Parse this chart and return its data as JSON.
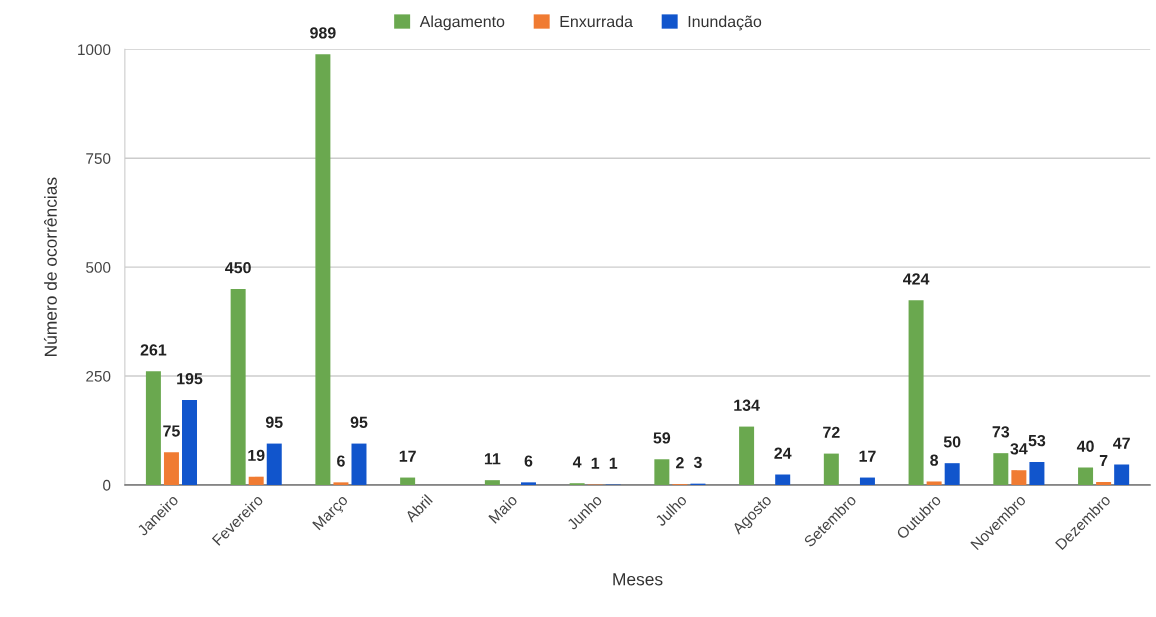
{
  "chart_data": {
    "type": "bar",
    "xlabel": "Meses",
    "ylabel": "Número de ocorrências",
    "categories": [
      "Janeiro",
      "Fevereiro",
      "Março",
      "Abril",
      "Maio",
      "Junho",
      "Julho",
      "Agosto",
      "Setembro",
      "Outubro",
      "Novembro",
      "Dezembro"
    ],
    "series": [
      {
        "name": "Alagamento",
        "color": "#6aa84f",
        "values": [
          261,
          450,
          989,
          17,
          11,
          4,
          59,
          134,
          72,
          424,
          73,
          40
        ]
      },
      {
        "name": "Enxurrada",
        "color": "#f07b32",
        "values": [
          75,
          19,
          6,
          null,
          null,
          1,
          2,
          null,
          null,
          8,
          34,
          7
        ]
      },
      {
        "name": "Inundação",
        "color": "#1155cc",
        "values": [
          195,
          95,
          95,
          null,
          6,
          1,
          3,
          24,
          17,
          50,
          53,
          47
        ]
      }
    ],
    "ylim": [
      0,
      1000
    ],
    "yticks": [
      0,
      250,
      500,
      750,
      1000
    ],
    "grid": "y",
    "legend": "top",
    "data_labels": true
  }
}
